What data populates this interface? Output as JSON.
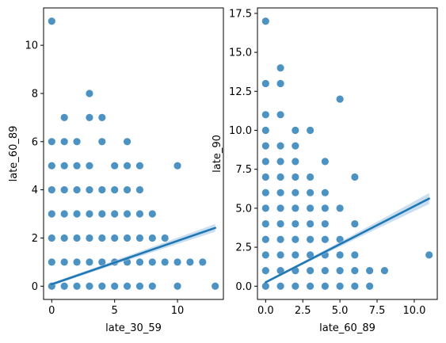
{
  "colors": {
    "marker": "#1f77b4",
    "line": "#1f77b4",
    "band": "#9ec3e6",
    "axis": "#000000"
  },
  "chart_data": [
    {
      "type": "scatter",
      "xlabel": "late_30_59",
      "ylabel": "late_60_89",
      "xlim": [
        -0.65,
        13.65
      ],
      "ylim": [
        -0.55,
        11.55
      ],
      "xticks": [
        0,
        5,
        10
      ],
      "yticks": [
        0,
        2,
        4,
        6,
        8,
        10
      ],
      "ytick_labels": [
        "0",
        "2",
        "4",
        "6",
        "8",
        "10"
      ],
      "regression": {
        "x": [
          0,
          13
        ],
        "y": [
          0.08,
          2.42
        ],
        "band": [
          0.06,
          0.07,
          0.1,
          0.13,
          0.16
        ]
      },
      "points": [
        [
          0,
          11
        ],
        [
          1,
          7
        ],
        [
          3,
          7
        ],
        [
          4,
          7
        ],
        [
          3,
          8
        ],
        [
          0,
          6
        ],
        [
          1,
          6
        ],
        [
          2,
          6
        ],
        [
          4,
          6
        ],
        [
          6,
          6
        ],
        [
          0,
          5
        ],
        [
          1,
          5
        ],
        [
          2,
          5
        ],
        [
          3,
          5
        ],
        [
          5,
          5
        ],
        [
          6,
          5
        ],
        [
          7,
          5
        ],
        [
          10,
          5
        ],
        [
          0,
          4
        ],
        [
          1,
          4
        ],
        [
          2,
          4
        ],
        [
          3,
          4
        ],
        [
          4,
          4
        ],
        [
          5,
          4
        ],
        [
          6,
          4
        ],
        [
          7,
          4
        ],
        [
          0,
          3
        ],
        [
          1,
          3
        ],
        [
          2,
          3
        ],
        [
          3,
          3
        ],
        [
          4,
          3
        ],
        [
          5,
          3
        ],
        [
          6,
          3
        ],
        [
          7,
          3
        ],
        [
          8,
          3
        ],
        [
          0,
          2
        ],
        [
          1,
          2
        ],
        [
          2,
          2
        ],
        [
          3,
          2
        ],
        [
          4,
          2
        ],
        [
          5,
          2
        ],
        [
          6,
          2
        ],
        [
          7,
          2
        ],
        [
          8,
          2
        ],
        [
          9,
          2
        ],
        [
          0,
          1
        ],
        [
          1,
          1
        ],
        [
          2,
          1
        ],
        [
          3,
          1
        ],
        [
          4,
          1
        ],
        [
          5,
          1
        ],
        [
          6,
          1
        ],
        [
          7,
          1
        ],
        [
          8,
          1
        ],
        [
          9,
          1
        ],
        [
          10,
          1
        ],
        [
          11,
          1
        ],
        [
          12,
          1
        ],
        [
          0,
          0
        ],
        [
          1,
          0
        ],
        [
          2,
          0
        ],
        [
          3,
          0
        ],
        [
          4,
          0
        ],
        [
          5,
          0
        ],
        [
          6,
          0
        ],
        [
          7,
          0
        ],
        [
          8,
          0
        ],
        [
          10,
          0
        ],
        [
          13,
          0
        ]
      ]
    },
    {
      "type": "scatter",
      "xlabel": "late_60_89",
      "ylabel": "late_90",
      "xlim": [
        -0.55,
        11.55
      ],
      "ylim": [
        -0.85,
        17.85
      ],
      "xticks": [
        0,
        2.5,
        5,
        7.5,
        10
      ],
      "xtick_labels": [
        "0.0",
        "2.5",
        "5.0",
        "7.5",
        "10.0"
      ],
      "yticks": [
        0,
        2.5,
        5,
        7.5,
        10,
        12.5,
        15,
        17.5
      ],
      "ytick_labels": [
        "0.0",
        "2.5",
        "5.0",
        "7.5",
        "10.0",
        "12.5",
        "15.0",
        "17.5"
      ],
      "regression": {
        "x": [
          0,
          11
        ],
        "y": [
          0.25,
          5.62
        ],
        "band": [
          0.08,
          0.1,
          0.16,
          0.25,
          0.35
        ]
      },
      "points": [
        [
          0,
          17
        ],
        [
          1,
          14
        ],
        [
          0,
          13
        ],
        [
          1,
          13
        ],
        [
          5,
          12
        ],
        [
          0,
          11
        ],
        [
          1,
          11
        ],
        [
          0,
          10
        ],
        [
          2,
          10
        ],
        [
          3,
          10
        ],
        [
          0,
          9
        ],
        [
          1,
          9
        ],
        [
          2,
          9
        ],
        [
          0,
          8
        ],
        [
          1,
          8
        ],
        [
          2,
          8
        ],
        [
          4,
          8
        ],
        [
          0,
          7
        ],
        [
          1,
          7
        ],
        [
          2,
          7
        ],
        [
          3,
          7
        ],
        [
          6,
          7
        ],
        [
          0,
          6
        ],
        [
          1,
          6
        ],
        [
          2,
          6
        ],
        [
          3,
          6
        ],
        [
          4,
          6
        ],
        [
          0,
          5
        ],
        [
          1,
          5
        ],
        [
          2,
          5
        ],
        [
          3,
          5
        ],
        [
          4,
          5
        ],
        [
          5,
          5
        ],
        [
          0,
          4
        ],
        [
          1,
          4
        ],
        [
          2,
          4
        ],
        [
          3,
          4
        ],
        [
          4,
          4
        ],
        [
          6,
          4
        ],
        [
          0,
          3
        ],
        [
          1,
          3
        ],
        [
          2,
          3
        ],
        [
          3,
          3
        ],
        [
          4,
          3
        ],
        [
          5,
          3
        ],
        [
          0,
          2
        ],
        [
          1,
          2
        ],
        [
          2,
          2
        ],
        [
          3,
          2
        ],
        [
          4,
          2
        ],
        [
          5,
          2
        ],
        [
          6,
          2
        ],
        [
          11,
          2
        ],
        [
          0,
          1
        ],
        [
          1,
          1
        ],
        [
          2,
          1
        ],
        [
          3,
          1
        ],
        [
          4,
          1
        ],
        [
          5,
          1
        ],
        [
          6,
          1
        ],
        [
          7,
          1
        ],
        [
          8,
          1
        ],
        [
          0,
          0
        ],
        [
          1,
          0
        ],
        [
          2,
          0
        ],
        [
          3,
          0
        ],
        [
          4,
          0
        ],
        [
          5,
          0
        ],
        [
          6,
          0
        ],
        [
          7,
          0
        ]
      ]
    }
  ]
}
